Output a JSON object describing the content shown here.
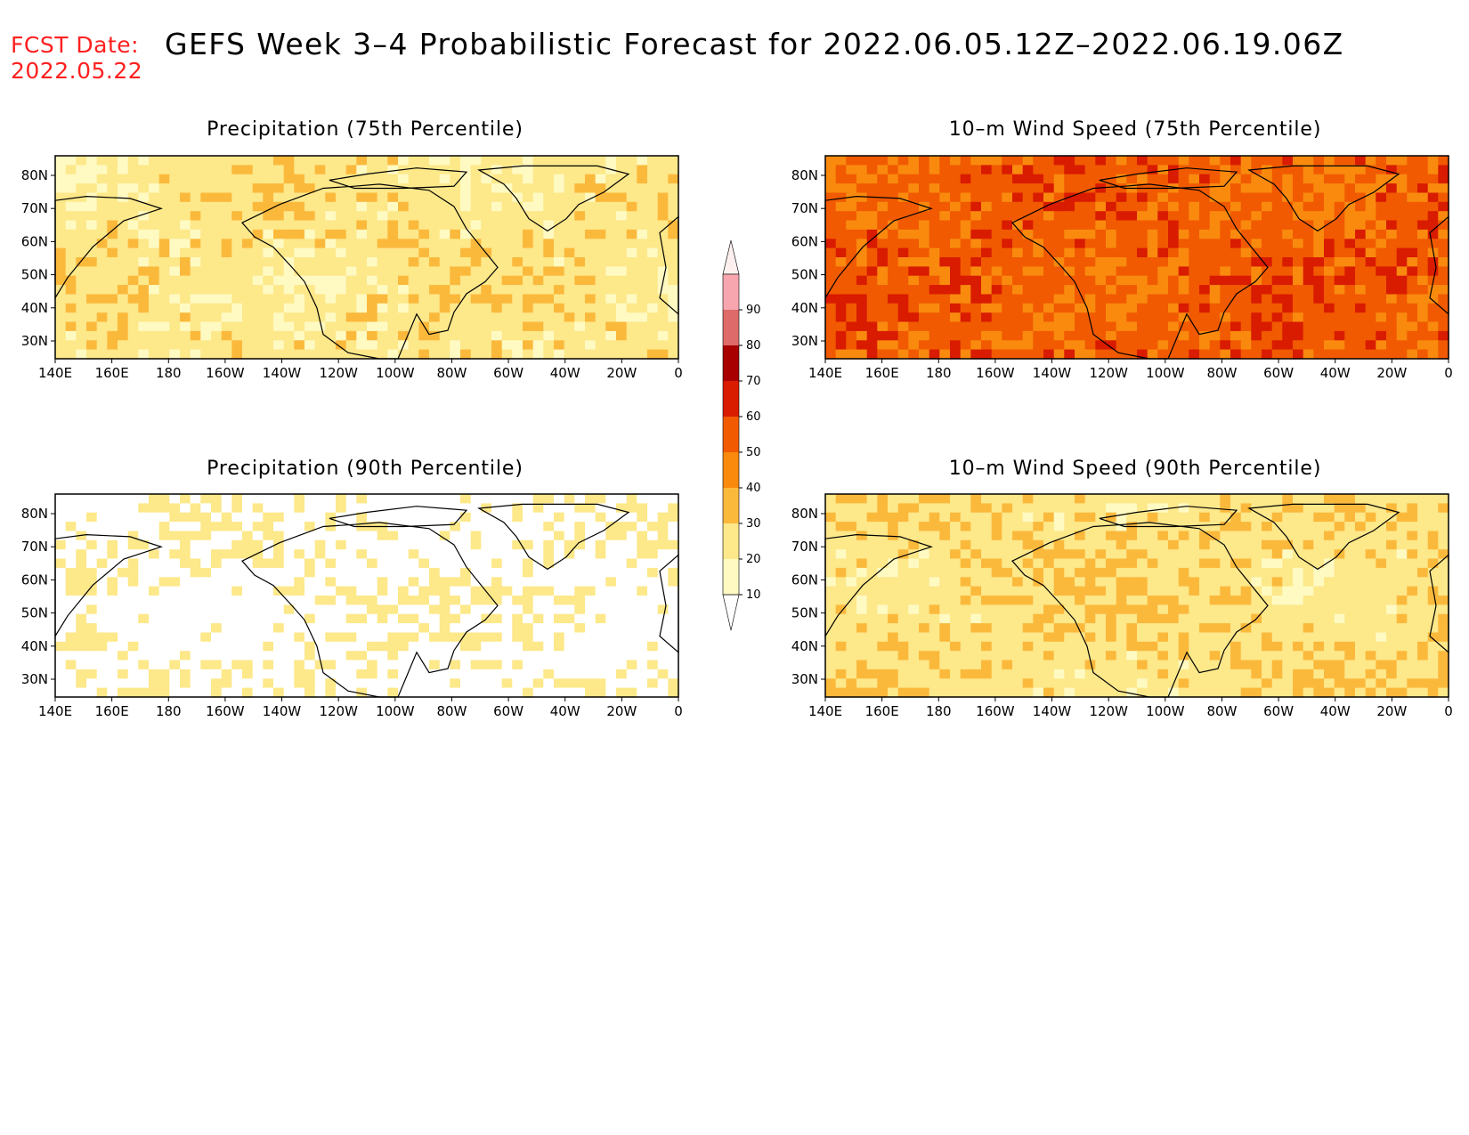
{
  "header": {
    "fcst_label": "FCST Date:",
    "fcst_date": "2022.05.22",
    "title": "GEFS Week 3–4 Probabilistic Forecast for 2022.06.05.12Z–2022.06.19.06Z"
  },
  "x_tick_labels": [
    "140E",
    "160E",
    "180",
    "160W",
    "140W",
    "120W",
    "100W",
    "80W",
    "60W",
    "40W",
    "20W",
    "0"
  ],
  "y_tick_labels": [
    "80N",
    "70N",
    "60N",
    "50N",
    "40N",
    "30N"
  ],
  "colorbar": {
    "levels": [
      "10",
      "20",
      "30",
      "40",
      "50",
      "60",
      "70",
      "80",
      "90"
    ],
    "colors": [
      "#fffac2",
      "#fde88a",
      "#fbb93c",
      "#f98a0e",
      "#f15a00",
      "#d91b00",
      "#a80000",
      "#de6a6a",
      "#f7a6b0",
      "#fff0f0"
    ]
  },
  "panels": [
    {
      "id": "precip-75",
      "title": "Precipitation (75th Percentile)",
      "base_level": 1,
      "variability": 1.4,
      "seed": 11
    },
    {
      "id": "wind-75",
      "title": "10–m Wind Speed (75th Percentile)",
      "base_level": 3.9,
      "variability": 1.7,
      "seed": 23
    },
    {
      "id": "precip-90",
      "title": "Precipitation (90th Percentile)",
      "base_level": 0.2,
      "variability": 1.5,
      "seed": 37
    },
    {
      "id": "wind-90",
      "title": "10–m Wind Speed (90th Percentile)",
      "base_level": 1.2,
      "variability": 1.3,
      "seed": 51
    }
  ]
}
